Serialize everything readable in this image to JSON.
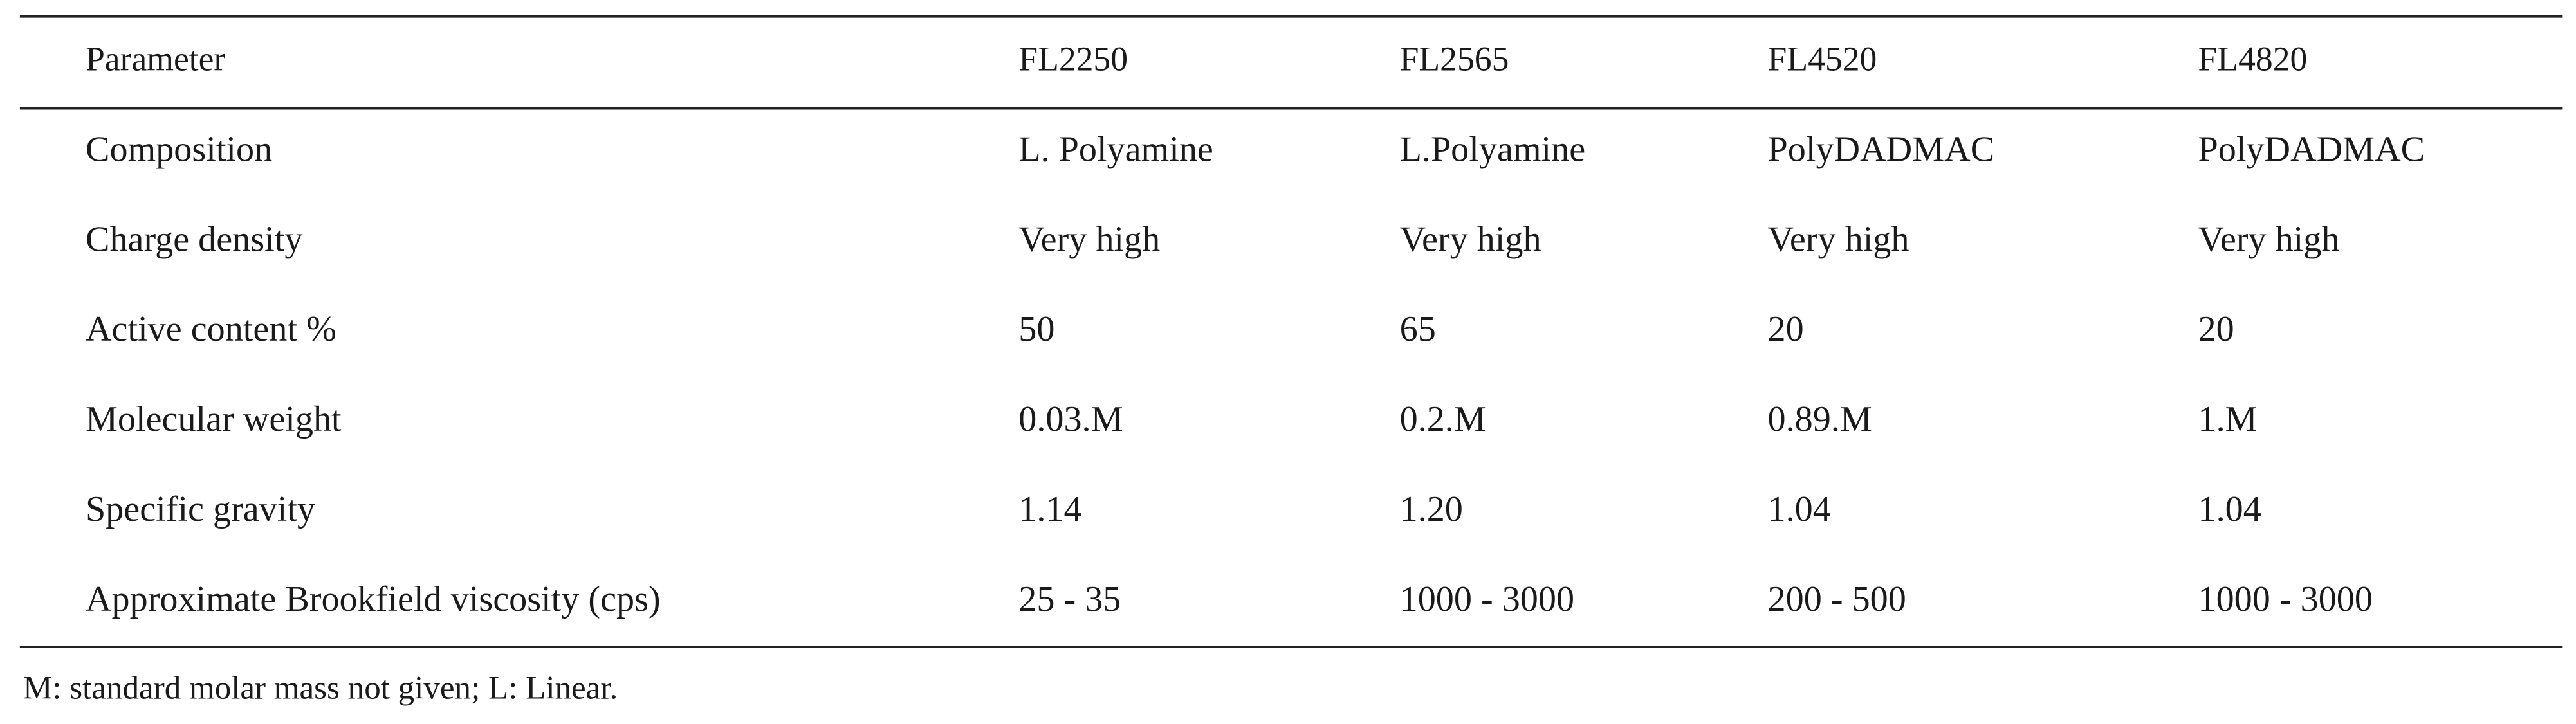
{
  "table": {
    "header": [
      "Parameter",
      "FL2250",
      "FL2565",
      "FL4520",
      "FL4820"
    ],
    "rows": [
      [
        "Composition",
        "L. Polyamine",
        "L.Polyamine",
        "PolyDADMAC",
        "PolyDADMAC"
      ],
      [
        "Charge density",
        "Very high",
        "Very high",
        "Very high",
        "Very high"
      ],
      [
        "Active content %",
        "50",
        "65",
        "20",
        "20"
      ],
      [
        "Molecular weight",
        "0.03.M",
        "0.2.M",
        "0.89.M",
        "1.M"
      ],
      [
        "Specific gravity",
        "1.14",
        "1.20",
        "1.04",
        "1.04"
      ],
      [
        "Approximate Brookfield viscosity (cps)",
        "25 - 35",
        "1000 - 3000",
        "200 - 500",
        "1000 - 3000"
      ]
    ],
    "footnote": "M: standard molar mass not given; L: Linear."
  }
}
